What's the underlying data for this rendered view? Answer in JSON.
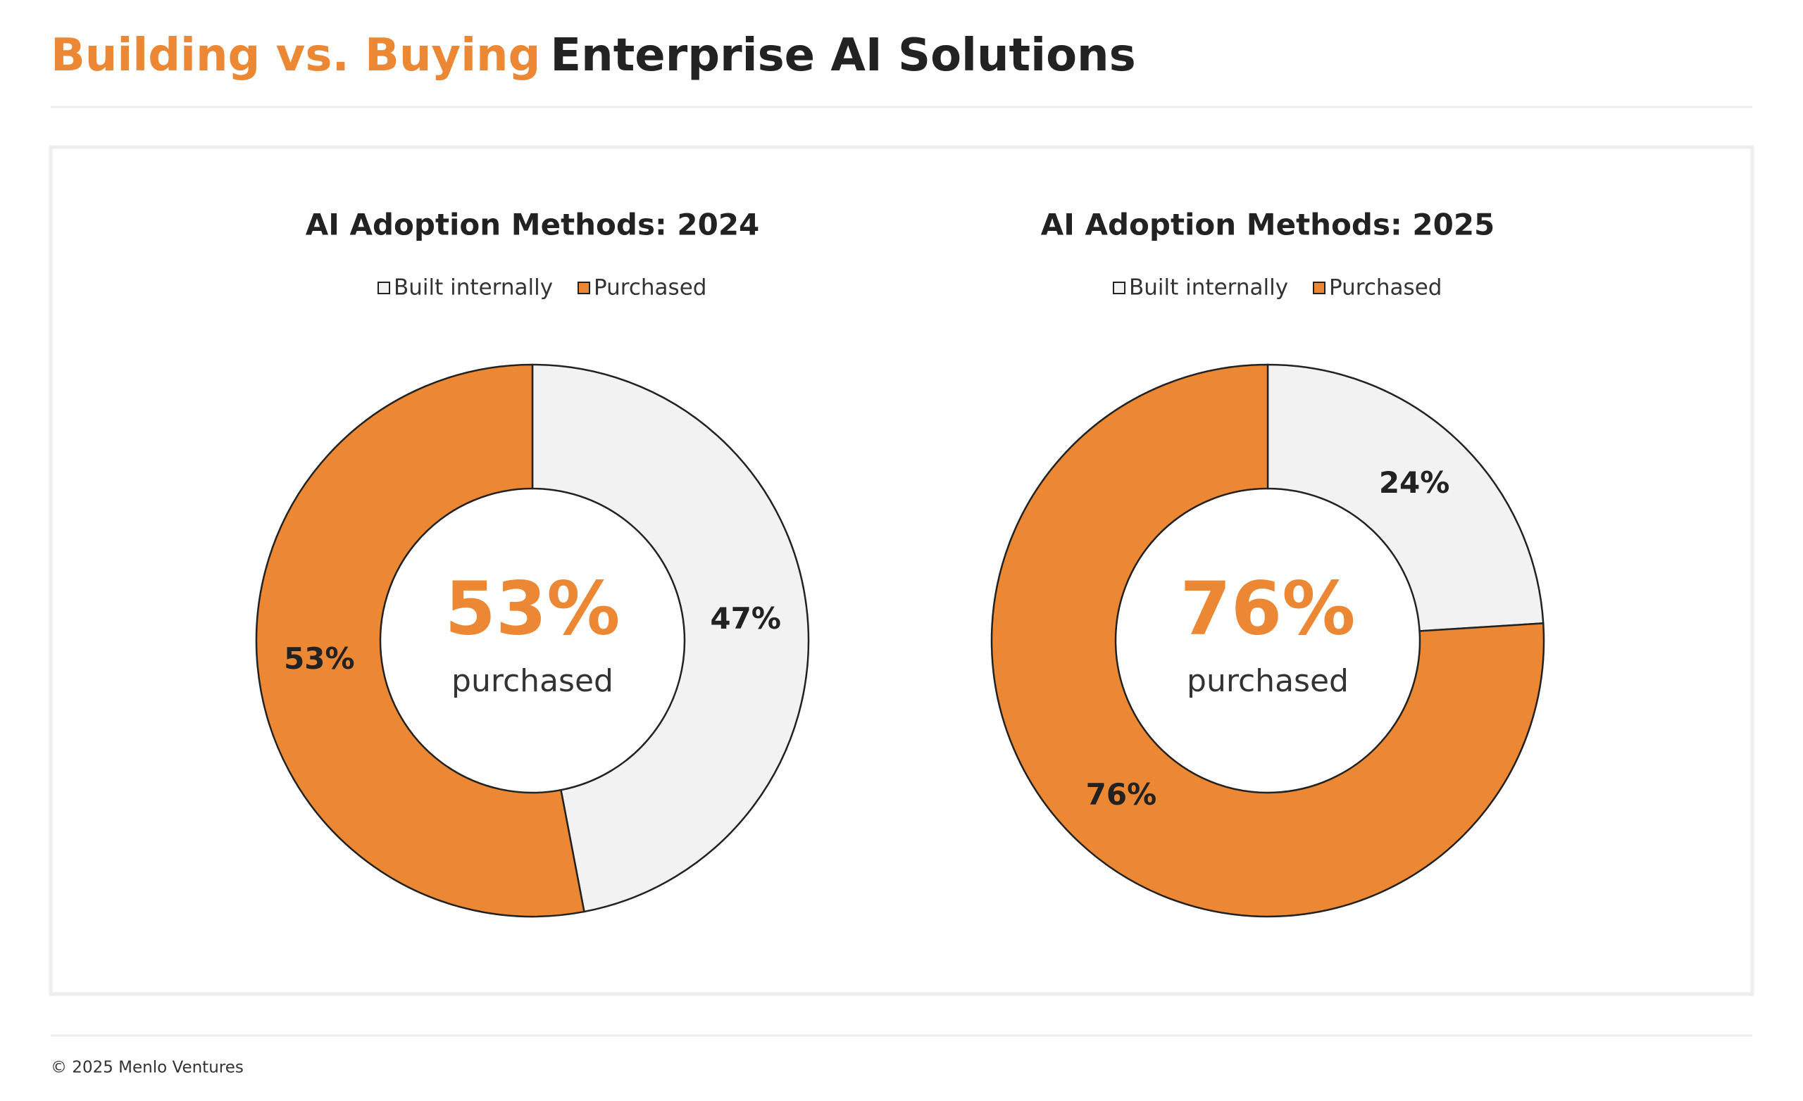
{
  "header": {
    "title_highlight": "Building vs. Buying",
    "title_rest": "Enterprise AI Solutions"
  },
  "chart_data": [
    {
      "type": "donut",
      "title": "AI Adoption Methods: 2024",
      "categories": [
        "Built internally",
        "Purchased"
      ],
      "values": [
        47,
        53
      ],
      "value_labels": [
        "47%",
        "53%"
      ],
      "colors": [
        "#f2f2f2",
        "#ec8834"
      ],
      "center_label": "purchased"
    },
    {
      "type": "donut",
      "title": "AI Adoption Methods: 2025",
      "categories": [
        "Built internally",
        "Purchased"
      ],
      "values": [
        24,
        76
      ],
      "value_labels": [
        "24%",
        "76%"
      ],
      "colors": [
        "#f2f2f2",
        "#ec8834"
      ],
      "center_label": "purchased"
    }
  ],
  "footer": "© 2025 Menlo Ventures"
}
